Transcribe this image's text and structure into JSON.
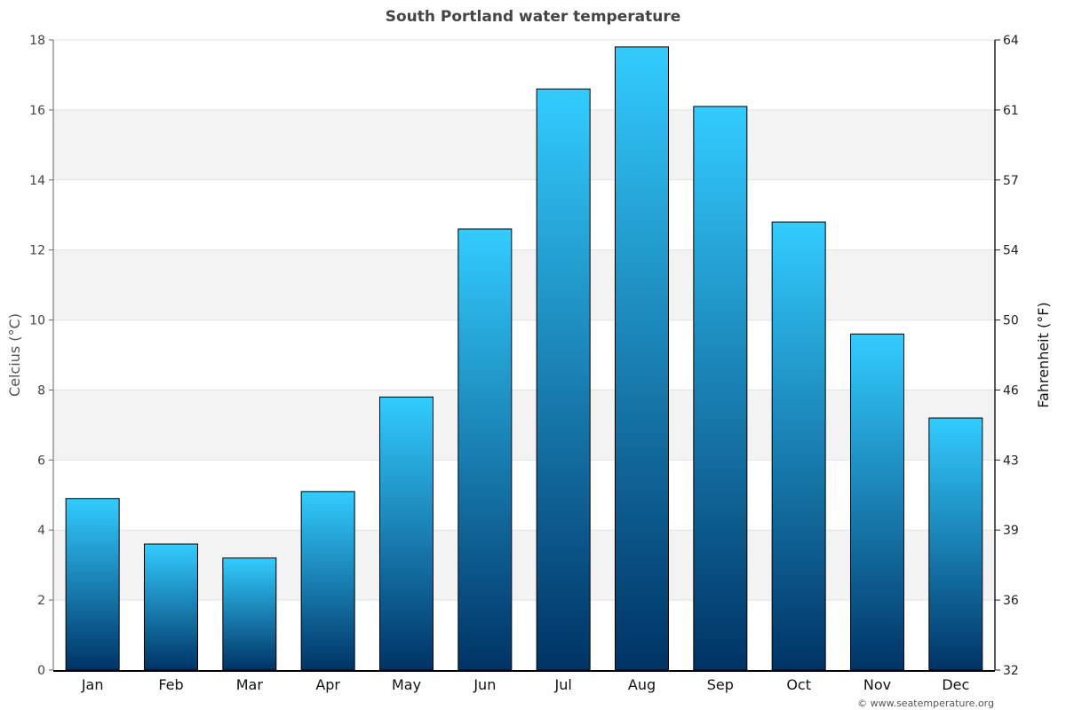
{
  "chart_data": {
    "type": "bar",
    "title": "South Portland water temperature",
    "categories": [
      "Jan",
      "Feb",
      "Mar",
      "Apr",
      "May",
      "Jun",
      "Jul",
      "Aug",
      "Sep",
      "Oct",
      "Nov",
      "Dec"
    ],
    "values": [
      4.9,
      3.6,
      3.2,
      5.1,
      7.8,
      12.6,
      16.6,
      17.8,
      16.1,
      12.8,
      9.6,
      7.2
    ],
    "ylabel": "Celcius (°C)",
    "ylabel_right": "Fahrenheit (°F)",
    "ylim": [
      0,
      18
    ],
    "yticks_left": [
      "0",
      "2",
      "4",
      "6",
      "8",
      "10",
      "12",
      "14",
      "16",
      "18"
    ],
    "yticks_right": [
      "32",
      "36",
      "39",
      "43",
      "46",
      "50",
      "54",
      "57",
      "61",
      "64"
    ],
    "grid": "horizontal bands",
    "legend": "none",
    "colors": {
      "bar_top": "#33ccff",
      "bar_bottom": "#003366",
      "band": "#f3f3f3",
      "gridline": "#e2e2e2"
    },
    "credit": "© www.seatemperature.org"
  }
}
